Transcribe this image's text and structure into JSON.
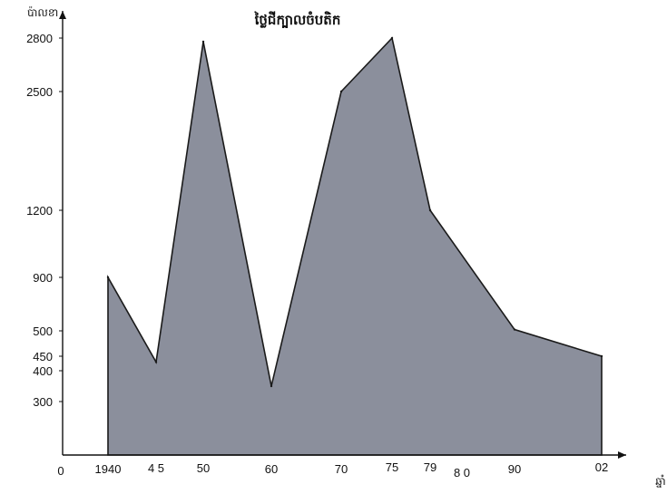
{
  "chart_data": {
    "type": "area",
    "title": "ថ្លៃជីក្បាលចំបតិក",
    "ylabel": "ប៉ាលខា",
    "xlabel": "ឆ្នាំ",
    "origin_label": "0",
    "x": [
      "1940",
      "45",
      "50",
      "60",
      "70",
      "75",
      "79",
      "80",
      "90",
      "02"
    ],
    "x_tick_labels": [
      "1940",
      "4 5",
      "50",
      "60",
      "70",
      "75",
      "79",
      "8 0",
      "90",
      "02"
    ],
    "series": [
      {
        "values": [
          900,
          430,
          2780,
          350,
          2500,
          2800,
          1200,
          null,
          510,
          450
        ]
      }
    ],
    "y_tick_labels": [
      "2800",
      "2500",
      "1200",
      "900",
      "500",
      "450",
      "400",
      "300"
    ],
    "grid": false,
    "colors": {
      "fill": "#8b8f9c",
      "line": "#1a1a1a",
      "axis": "#111111"
    }
  }
}
